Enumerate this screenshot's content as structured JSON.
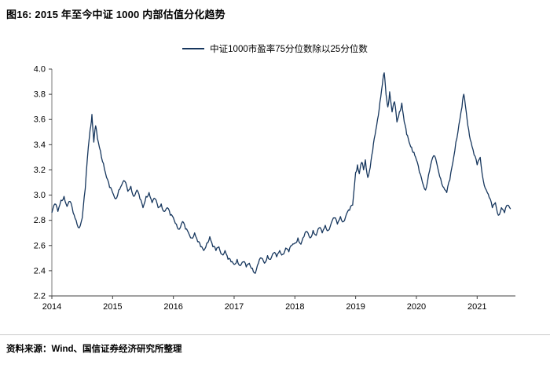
{
  "header": {
    "title": "图16: 2015 年至今中证 1000 内部估值分化趋势"
  },
  "footer": {
    "source": "资料来源：Wind、国信证券经济研究所整理"
  },
  "colors": {
    "line": "#17375E",
    "axis": "#404040",
    "tick_text": "#000000"
  },
  "chart_data": {
    "type": "line",
    "title": "2015 年至今中证 1000 内部估值分化趋势",
    "xlabel": "",
    "ylabel": "",
    "legend_entries": [
      "中证1000市盈率75分位数除以25分位数"
    ],
    "legend_position": "top",
    "grid": false,
    "xlim": [
      2014,
      2021.63
    ],
    "ylim": [
      2.2,
      4.0
    ],
    "xticks": [
      2014,
      2015,
      2016,
      2017,
      2018,
      2019,
      2020,
      2021
    ],
    "yticks": [
      2.2,
      2.4,
      2.6,
      2.8,
      3.0,
      3.2,
      3.4,
      3.6,
      3.8,
      4.0
    ],
    "series": [
      {
        "name": "中证1000市盈率75分位数除以25分位数",
        "points": [
          [
            2014.0,
            2.86
          ],
          [
            2014.05,
            2.93
          ],
          [
            2014.1,
            2.87
          ],
          [
            2014.15,
            2.96
          ],
          [
            2014.2,
            2.99
          ],
          [
            2014.25,
            2.91
          ],
          [
            2014.3,
            2.95
          ],
          [
            2014.35,
            2.86
          ],
          [
            2014.4,
            2.8
          ],
          [
            2014.45,
            2.74
          ],
          [
            2014.5,
            2.82
          ],
          [
            2014.55,
            3.05
          ],
          [
            2014.6,
            3.38
          ],
          [
            2014.63,
            3.52
          ],
          [
            2014.66,
            3.64
          ],
          [
            2014.69,
            3.42
          ],
          [
            2014.72,
            3.55
          ],
          [
            2014.75,
            3.45
          ],
          [
            2014.8,
            3.35
          ],
          [
            2014.85,
            3.25
          ],
          [
            2014.9,
            3.14
          ],
          [
            2014.95,
            3.06
          ],
          [
            2015.0,
            3.02
          ],
          [
            2015.05,
            2.97
          ],
          [
            2015.1,
            3.04
          ],
          [
            2015.15,
            3.08
          ],
          [
            2015.2,
            3.11
          ],
          [
            2015.25,
            3.03
          ],
          [
            2015.3,
            3.07
          ],
          [
            2015.35,
            2.99
          ],
          [
            2015.4,
            3.04
          ],
          [
            2015.45,
            2.97
          ],
          [
            2015.5,
            2.9
          ],
          [
            2015.55,
            2.99
          ],
          [
            2015.6,
            3.02
          ],
          [
            2015.65,
            2.94
          ],
          [
            2015.7,
            2.97
          ],
          [
            2015.75,
            2.9
          ],
          [
            2015.8,
            2.93
          ],
          [
            2015.85,
            2.87
          ],
          [
            2015.9,
            2.9
          ],
          [
            2015.95,
            2.84
          ],
          [
            2016.0,
            2.82
          ],
          [
            2016.05,
            2.77
          ],
          [
            2016.1,
            2.73
          ],
          [
            2016.15,
            2.79
          ],
          [
            2016.2,
            2.73
          ],
          [
            2016.25,
            2.7
          ],
          [
            2016.3,
            2.66
          ],
          [
            2016.35,
            2.7
          ],
          [
            2016.4,
            2.63
          ],
          [
            2016.45,
            2.59
          ],
          [
            2016.5,
            2.56
          ],
          [
            2016.55,
            2.62
          ],
          [
            2016.6,
            2.67
          ],
          [
            2016.65,
            2.59
          ],
          [
            2016.7,
            2.56
          ],
          [
            2016.75,
            2.59
          ],
          [
            2016.8,
            2.53
          ],
          [
            2016.85,
            2.56
          ],
          [
            2016.9,
            2.49
          ],
          [
            2016.95,
            2.47
          ],
          [
            2017.0,
            2.45
          ],
          [
            2017.05,
            2.49
          ],
          [
            2017.1,
            2.44
          ],
          [
            2017.15,
            2.47
          ],
          [
            2017.2,
            2.43
          ],
          [
            2017.25,
            2.46
          ],
          [
            2017.3,
            2.42
          ],
          [
            2017.35,
            2.38
          ],
          [
            2017.4,
            2.46
          ],
          [
            2017.45,
            2.5
          ],
          [
            2017.5,
            2.46
          ],
          [
            2017.55,
            2.52
          ],
          [
            2017.6,
            2.49
          ],
          [
            2017.65,
            2.54
          ],
          [
            2017.7,
            2.51
          ],
          [
            2017.75,
            2.56
          ],
          [
            2017.8,
            2.53
          ],
          [
            2017.85,
            2.58
          ],
          [
            2017.9,
            2.55
          ],
          [
            2017.95,
            2.6
          ],
          [
            2018.0,
            2.62
          ],
          [
            2018.05,
            2.66
          ],
          [
            2018.1,
            2.61
          ],
          [
            2018.15,
            2.67
          ],
          [
            2018.2,
            2.71
          ],
          [
            2018.25,
            2.66
          ],
          [
            2018.3,
            2.72
          ],
          [
            2018.35,
            2.68
          ],
          [
            2018.4,
            2.74
          ],
          [
            2018.45,
            2.7
          ],
          [
            2018.5,
            2.76
          ],
          [
            2018.55,
            2.72
          ],
          [
            2018.6,
            2.78
          ],
          [
            2018.65,
            2.82
          ],
          [
            2018.7,
            2.77
          ],
          [
            2018.75,
            2.83
          ],
          [
            2018.8,
            2.79
          ],
          [
            2018.85,
            2.85
          ],
          [
            2018.9,
            2.88
          ],
          [
            2018.95,
            2.92
          ],
          [
            2019.0,
            3.18
          ],
          [
            2019.03,
            3.24
          ],
          [
            2019.06,
            3.17
          ],
          [
            2019.1,
            3.26
          ],
          [
            2019.13,
            3.2
          ],
          [
            2019.16,
            3.28
          ],
          [
            2019.2,
            3.14
          ],
          [
            2019.24,
            3.22
          ],
          [
            2019.28,
            3.35
          ],
          [
            2019.32,
            3.48
          ],
          [
            2019.36,
            3.6
          ],
          [
            2019.4,
            3.74
          ],
          [
            2019.44,
            3.88
          ],
          [
            2019.47,
            3.97
          ],
          [
            2019.5,
            3.8
          ],
          [
            2019.53,
            3.7
          ],
          [
            2019.56,
            3.82
          ],
          [
            2019.6,
            3.66
          ],
          [
            2019.64,
            3.74
          ],
          [
            2019.68,
            3.58
          ],
          [
            2019.72,
            3.66
          ],
          [
            2019.76,
            3.73
          ],
          [
            2019.8,
            3.58
          ],
          [
            2019.84,
            3.48
          ],
          [
            2019.88,
            3.42
          ],
          [
            2019.92,
            3.38
          ],
          [
            2019.96,
            3.34
          ],
          [
            2020.0,
            3.28
          ],
          [
            2020.05,
            3.18
          ],
          [
            2020.1,
            3.1
          ],
          [
            2020.15,
            3.04
          ],
          [
            2020.2,
            3.16
          ],
          [
            2020.25,
            3.27
          ],
          [
            2020.3,
            3.31
          ],
          [
            2020.35,
            3.22
          ],
          [
            2020.4,
            3.13
          ],
          [
            2020.45,
            3.06
          ],
          [
            2020.5,
            3.02
          ],
          [
            2020.55,
            3.12
          ],
          [
            2020.6,
            3.26
          ],
          [
            2020.65,
            3.42
          ],
          [
            2020.7,
            3.56
          ],
          [
            2020.75,
            3.7
          ],
          [
            2020.78,
            3.8
          ],
          [
            2020.82,
            3.66
          ],
          [
            2020.86,
            3.52
          ],
          [
            2020.9,
            3.42
          ],
          [
            2020.95,
            3.32
          ],
          [
            2021.0,
            3.24
          ],
          [
            2021.05,
            3.3
          ],
          [
            2021.1,
            3.12
          ],
          [
            2021.15,
            3.04
          ],
          [
            2021.2,
            2.98
          ],
          [
            2021.25,
            2.9
          ],
          [
            2021.3,
            2.94
          ],
          [
            2021.35,
            2.84
          ],
          [
            2021.4,
            2.9
          ],
          [
            2021.45,
            2.86
          ],
          [
            2021.5,
            2.92
          ],
          [
            2021.55,
            2.89
          ]
        ]
      }
    ]
  }
}
